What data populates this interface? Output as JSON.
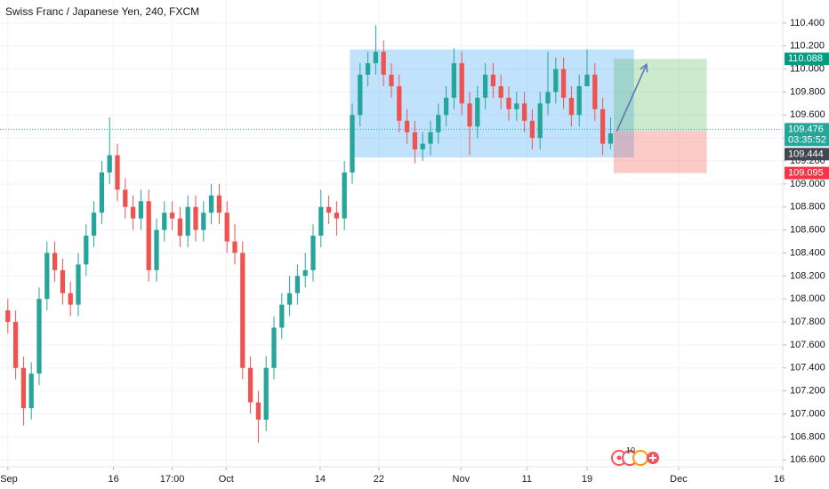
{
  "chart_data": {
    "type": "candlestick",
    "title": "Swiss Franc / Japanese Yen, 240, FXCM",
    "up_color": "#26a69a",
    "down_color": "#ef5350",
    "grid": true,
    "x": [
      0,
      1,
      2,
      3,
      4,
      5,
      6,
      7,
      8,
      9,
      10,
      11,
      12,
      13,
      14,
      15,
      16,
      17,
      18,
      19,
      20,
      21,
      22,
      23,
      24,
      25,
      26,
      27,
      28,
      29,
      30,
      31,
      32,
      33,
      34,
      35,
      36,
      37,
      38,
      39,
      40,
      41,
      42,
      43,
      44,
      45,
      46,
      47,
      48,
      49,
      50,
      51,
      52,
      53,
      54,
      55,
      56,
      57,
      58,
      59,
      60,
      61,
      62,
      63,
      64,
      65,
      66,
      67,
      68,
      69,
      70,
      71,
      72,
      73,
      74,
      75,
      76,
      77
    ],
    "open": [
      107.9,
      107.8,
      107.4,
      107.05,
      107.35,
      108.0,
      108.4,
      108.25,
      108.05,
      107.95,
      108.3,
      108.55,
      108.75,
      109.1,
      109.25,
      108.95,
      108.8,
      108.7,
      108.85,
      108.25,
      108.6,
      108.75,
      108.7,
      108.55,
      108.8,
      108.6,
      108.75,
      108.9,
      108.75,
      108.5,
      108.4,
      107.4,
      107.1,
      106.95,
      107.4,
      107.75,
      107.95,
      108.05,
      108.2,
      108.25,
      108.55,
      108.8,
      108.75,
      108.7,
      109.1,
      109.6,
      109.95,
      110.05,
      110.15,
      109.95,
      109.85,
      109.55,
      109.45,
      109.3,
      109.35,
      109.45,
      109.6,
      109.75,
      110.05,
      109.7,
      109.5,
      109.75,
      109.95,
      109.85,
      109.75,
      109.65,
      109.7,
      109.55,
      109.4,
      109.7,
      109.8,
      110.0,
      109.75,
      109.6,
      109.85,
      109.95,
      109.65,
      109.35
    ],
    "high": [
      108.0,
      107.9,
      107.5,
      107.45,
      108.1,
      108.5,
      108.5,
      108.35,
      108.15,
      108.4,
      108.65,
      108.85,
      109.2,
      109.58,
      109.35,
      109.05,
      108.9,
      108.95,
      108.95,
      108.7,
      108.85,
      108.85,
      108.8,
      108.9,
      108.9,
      108.85,
      109.0,
      109.0,
      108.85,
      108.65,
      108.5,
      107.5,
      107.2,
      107.5,
      107.85,
      108.05,
      108.2,
      108.3,
      108.4,
      108.65,
      108.95,
      108.9,
      108.85,
      109.2,
      109.7,
      110.05,
      110.15,
      110.38,
      110.25,
      110.05,
      109.95,
      109.65,
      109.55,
      109.45,
      109.55,
      109.7,
      109.85,
      110.18,
      110.15,
      109.8,
      109.85,
      110.05,
      110.05,
      109.95,
      109.85,
      109.8,
      109.8,
      109.65,
      109.8,
      110.15,
      110.1,
      110.1,
      109.85,
      109.95,
      110.17,
      110.05,
      109.75,
      109.58
    ],
    "low": [
      107.7,
      107.3,
      106.9,
      106.95,
      107.25,
      107.9,
      108.15,
      107.95,
      107.85,
      107.85,
      108.2,
      108.45,
      108.65,
      109.0,
      108.85,
      108.7,
      108.6,
      108.6,
      108.15,
      108.15,
      108.5,
      108.6,
      108.45,
      108.45,
      108.5,
      108.5,
      108.65,
      108.65,
      108.4,
      108.3,
      107.3,
      107.0,
      106.75,
      106.85,
      107.3,
      107.65,
      107.85,
      107.95,
      108.1,
      108.15,
      108.45,
      108.65,
      108.55,
      108.6,
      109.0,
      109.5,
      109.85,
      109.95,
      109.85,
      109.75,
      109.45,
      109.35,
      109.18,
      109.2,
      109.25,
      109.35,
      109.5,
      109.65,
      109.6,
      109.25,
      109.4,
      109.65,
      109.75,
      109.65,
      109.55,
      109.55,
      109.45,
      109.3,
      109.3,
      109.6,
      109.7,
      109.65,
      109.5,
      109.5,
      109.85,
      109.55,
      109.25,
      109.3
    ],
    "close": [
      107.8,
      107.4,
      107.05,
      107.35,
      108.0,
      108.4,
      108.25,
      108.05,
      107.95,
      108.3,
      108.55,
      108.75,
      109.1,
      109.25,
      108.95,
      108.8,
      108.7,
      108.85,
      108.25,
      108.6,
      108.75,
      108.7,
      108.55,
      108.8,
      108.6,
      108.75,
      108.9,
      108.75,
      108.5,
      108.4,
      107.4,
      107.1,
      106.95,
      107.4,
      107.75,
      107.95,
      108.05,
      108.2,
      108.25,
      108.55,
      108.8,
      108.75,
      108.7,
      109.1,
      109.6,
      109.95,
      110.05,
      110.15,
      109.95,
      109.85,
      109.55,
      109.45,
      109.3,
      109.35,
      109.45,
      109.6,
      109.75,
      110.05,
      109.7,
      109.5,
      109.75,
      109.95,
      109.85,
      109.75,
      109.65,
      109.7,
      109.55,
      109.4,
      109.7,
      109.8,
      110.0,
      109.75,
      109.6,
      109.85,
      109.95,
      109.65,
      109.35,
      109.44
    ],
    "xlim": [
      -1,
      99
    ],
    "xticks": [
      {
        "value": 0,
        "label": "Sep"
      },
      {
        "value": 13.5,
        "label": "16"
      },
      {
        "value": 21,
        "label": "17:00"
      },
      {
        "value": 27.9,
        "label": "Oct"
      },
      {
        "value": 39.9,
        "label": "14"
      },
      {
        "value": 47.4,
        "label": "22"
      },
      {
        "value": 57.9,
        "label": "Nov"
      },
      {
        "value": 66.3,
        "label": "11"
      },
      {
        "value": 74,
        "label": "19"
      },
      {
        "value": 85.7,
        "label": "Dec"
      },
      {
        "value": 99,
        "label": "16"
      }
    ],
    "ylim": [
      106.54,
      110.6
    ],
    "yticks": [
      {
        "value": 106.6,
        "label": "106.600"
      },
      {
        "value": 106.8,
        "label": "106.800"
      },
      {
        "value": 107.0,
        "label": "107.000"
      },
      {
        "value": 107.2,
        "label": "107.200"
      },
      {
        "value": 107.4,
        "label": "107.400"
      },
      {
        "value": 107.6,
        "label": "107.600"
      },
      {
        "value": 107.8,
        "label": "107.800"
      },
      {
        "value": 108.0,
        "label": "108.000"
      },
      {
        "value": 108.2,
        "label": "108.200"
      },
      {
        "value": 108.4,
        "label": "108.400"
      },
      {
        "value": 108.6,
        "label": "108.600"
      },
      {
        "value": 108.8,
        "label": "108.800"
      },
      {
        "value": 109.0,
        "label": "109.000"
      },
      {
        "value": 109.2,
        "label": "109.200"
      },
      {
        "value": 109.4,
        "label": "109.400"
      },
      {
        "value": 109.6,
        "label": "109.600"
      },
      {
        "value": 109.8,
        "label": "109.800"
      },
      {
        "value": 110.0,
        "label": "110.000"
      },
      {
        "value": 110.2,
        "label": "110.200"
      },
      {
        "value": 110.4,
        "label": "110.400"
      }
    ],
    "current_price": {
      "value": 109.476,
      "color": "#26a69a"
    },
    "shapes": [
      {
        "kind": "rectangle",
        "x0": 43.7,
        "x1": 80,
        "y0": 109.23,
        "y1": 110.17,
        "color": "rgba(33,150,243,0.28)"
      },
      {
        "kind": "rectangle",
        "x0": 77.4,
        "x1": 89.3,
        "y0": 109.46,
        "y1": 110.088,
        "color": "rgba(76,175,80,0.28)"
      },
      {
        "kind": "rectangle",
        "x0": 77.4,
        "x1": 89.3,
        "y0": 109.095,
        "y1": 109.46,
        "color": "rgba(244,67,54,0.28)"
      },
      {
        "kind": "arrow",
        "x0": 77.8,
        "x1": 81.6,
        "y0": 109.46,
        "y1": 110.04,
        "color": "#5673b8"
      }
    ],
    "price_labels": [
      {
        "value": 110.088,
        "label": "110.088",
        "color": "#089981"
      },
      {
        "value": 109.476,
        "label": "109.476",
        "sublabel": "03:35:52",
        "color": "#26a69a"
      },
      {
        "value": 109.444,
        "label": "109.444",
        "color": "#434651"
      },
      {
        "value": 109.095,
        "label": "109.095",
        "color": "#f23645"
      }
    ],
    "event_badge": "10"
  }
}
